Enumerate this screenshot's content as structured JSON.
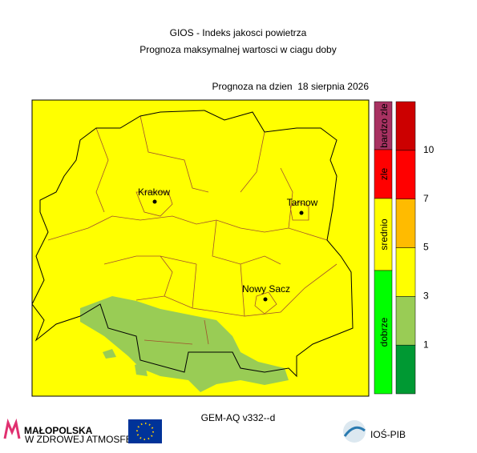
{
  "header": {
    "title": "GIOS - Indeks jakosci powietrza",
    "subtitle": "Prognoza maksymalnej wartosci w ciagu doby",
    "forecast_date": "Prognoza na dzien  18 sierpnia 2026"
  },
  "map": {
    "cities": [
      {
        "label": "Krakow"
      },
      {
        "label": "Tarnow"
      },
      {
        "label": "Nowy Sacz"
      }
    ]
  },
  "category_bar": [
    {
      "label": "bardzo zle",
      "color": "#a83262"
    },
    {
      "label": "zle",
      "color": "#ff0000"
    },
    {
      "label": "srednio",
      "color": "#ffff00"
    },
    {
      "label": "dobrze",
      "color": "#00ff00"
    }
  ],
  "colorbar": {
    "colors": [
      "#009933",
      "#99cc55",
      "#ffff00",
      "#ffbb00",
      "#ff0000",
      "#cc0000"
    ],
    "ticks": [
      1,
      3,
      5,
      7,
      10
    ]
  },
  "footer": {
    "model": "GEM-AQ v332--d",
    "logo_left": "MAŁOPOLSKA",
    "logo_left_sub": "W ZDROWEJ ATMOSFERZE",
    "logo_right": "IOŚ-PIB"
  }
}
